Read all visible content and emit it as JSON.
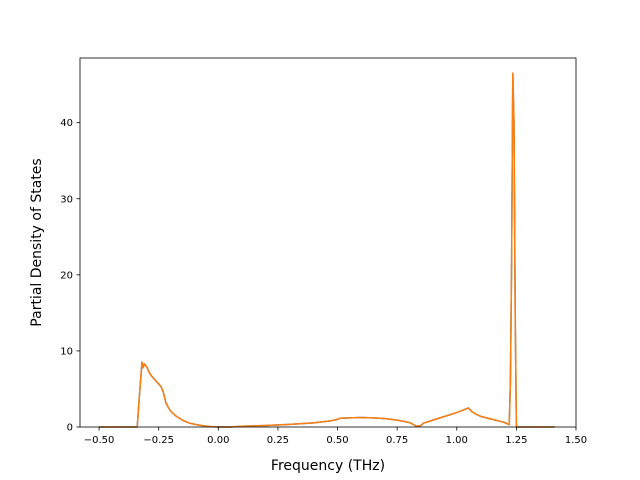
{
  "chart_data": {
    "type": "line",
    "title": "",
    "xlabel": "Frequency (THz)",
    "ylabel": "Partial Density of States",
    "xlim": [
      -0.58,
      1.5
    ],
    "ylim": [
      0,
      48.5
    ],
    "x_ticks": [
      -0.5,
      -0.25,
      0.0,
      0.25,
      0.5,
      0.75,
      1.0,
      1.25,
      1.5
    ],
    "x_tick_labels": [
      "−0.50",
      "−0.25",
      "0.00",
      "0.25",
      "0.50",
      "0.75",
      "1.00",
      "1.25",
      "1.50"
    ],
    "y_ticks": [
      0,
      10,
      20,
      30,
      40
    ],
    "y_tick_labels": [
      "0",
      "10",
      "20",
      "30",
      "40"
    ],
    "grid": false,
    "legend": "none",
    "series": [
      {
        "color": "#1f77b4",
        "x": [
          -0.5,
          -0.34,
          -0.33,
          -0.32,
          -0.315,
          -0.31,
          -0.3,
          -0.29,
          -0.28,
          -0.26,
          -0.24,
          -0.23,
          -0.22,
          -0.21,
          -0.2,
          -0.18,
          -0.15,
          -0.12,
          -0.09,
          -0.06,
          -0.03,
          0.0,
          0.05,
          0.1,
          0.2,
          0.3,
          0.4,
          0.47,
          0.5,
          0.51,
          0.55,
          0.6,
          0.65,
          0.7,
          0.75,
          0.8,
          0.82,
          0.83,
          0.85,
          0.86,
          0.87,
          0.9,
          0.95,
          1.0,
          1.05,
          1.06,
          1.08,
          1.1,
          1.15,
          1.2,
          1.22,
          1.225,
          1.23,
          1.235,
          1.24,
          1.245,
          1.25,
          1.26,
          1.3,
          1.41
        ],
        "y": [
          0,
          0,
          4.5,
          8.5,
          7.8,
          8.3,
          7.9,
          7.2,
          6.7,
          6.0,
          5.3,
          4.5,
          3.2,
          2.6,
          2.1,
          1.5,
          0.9,
          0.5,
          0.3,
          0.15,
          0.05,
          0,
          0,
          0.1,
          0.2,
          0.35,
          0.55,
          0.8,
          1.0,
          1.15,
          1.2,
          1.25,
          1.2,
          1.1,
          0.9,
          0.6,
          0.3,
          0.1,
          0.2,
          0.5,
          0.6,
          0.9,
          1.4,
          1.9,
          2.5,
          2.1,
          1.7,
          1.4,
          1.0,
          0.6,
          0.3,
          6.0,
          22.0,
          46.5,
          40.0,
          15.0,
          0,
          0,
          0,
          0
        ]
      },
      {
        "color": "#ff7f0e",
        "x": [
          -0.5,
          -0.34,
          -0.33,
          -0.32,
          -0.315,
          -0.31,
          -0.3,
          -0.29,
          -0.28,
          -0.26,
          -0.24,
          -0.23,
          -0.22,
          -0.21,
          -0.2,
          -0.18,
          -0.15,
          -0.12,
          -0.09,
          -0.06,
          -0.03,
          0.0,
          0.05,
          0.1,
          0.2,
          0.3,
          0.4,
          0.47,
          0.5,
          0.51,
          0.55,
          0.6,
          0.65,
          0.7,
          0.75,
          0.8,
          0.82,
          0.83,
          0.85,
          0.86,
          0.87,
          0.9,
          0.95,
          1.0,
          1.05,
          1.06,
          1.08,
          1.1,
          1.15,
          1.2,
          1.22,
          1.225,
          1.23,
          1.235,
          1.24,
          1.245,
          1.25,
          1.26,
          1.3,
          1.41
        ],
        "y": [
          0,
          0,
          4.5,
          8.5,
          7.8,
          8.3,
          7.9,
          7.2,
          6.7,
          6.0,
          5.3,
          4.5,
          3.2,
          2.6,
          2.1,
          1.5,
          0.9,
          0.5,
          0.3,
          0.15,
          0.05,
          0,
          0,
          0.1,
          0.2,
          0.35,
          0.55,
          0.8,
          1.0,
          1.15,
          1.2,
          1.25,
          1.2,
          1.1,
          0.9,
          0.6,
          0.3,
          0.1,
          0.2,
          0.5,
          0.6,
          0.9,
          1.4,
          1.9,
          2.5,
          2.1,
          1.7,
          1.4,
          1.0,
          0.6,
          0.3,
          6.0,
          22.0,
          46.5,
          40.0,
          15.0,
          0,
          0,
          0,
          0
        ]
      }
    ]
  }
}
